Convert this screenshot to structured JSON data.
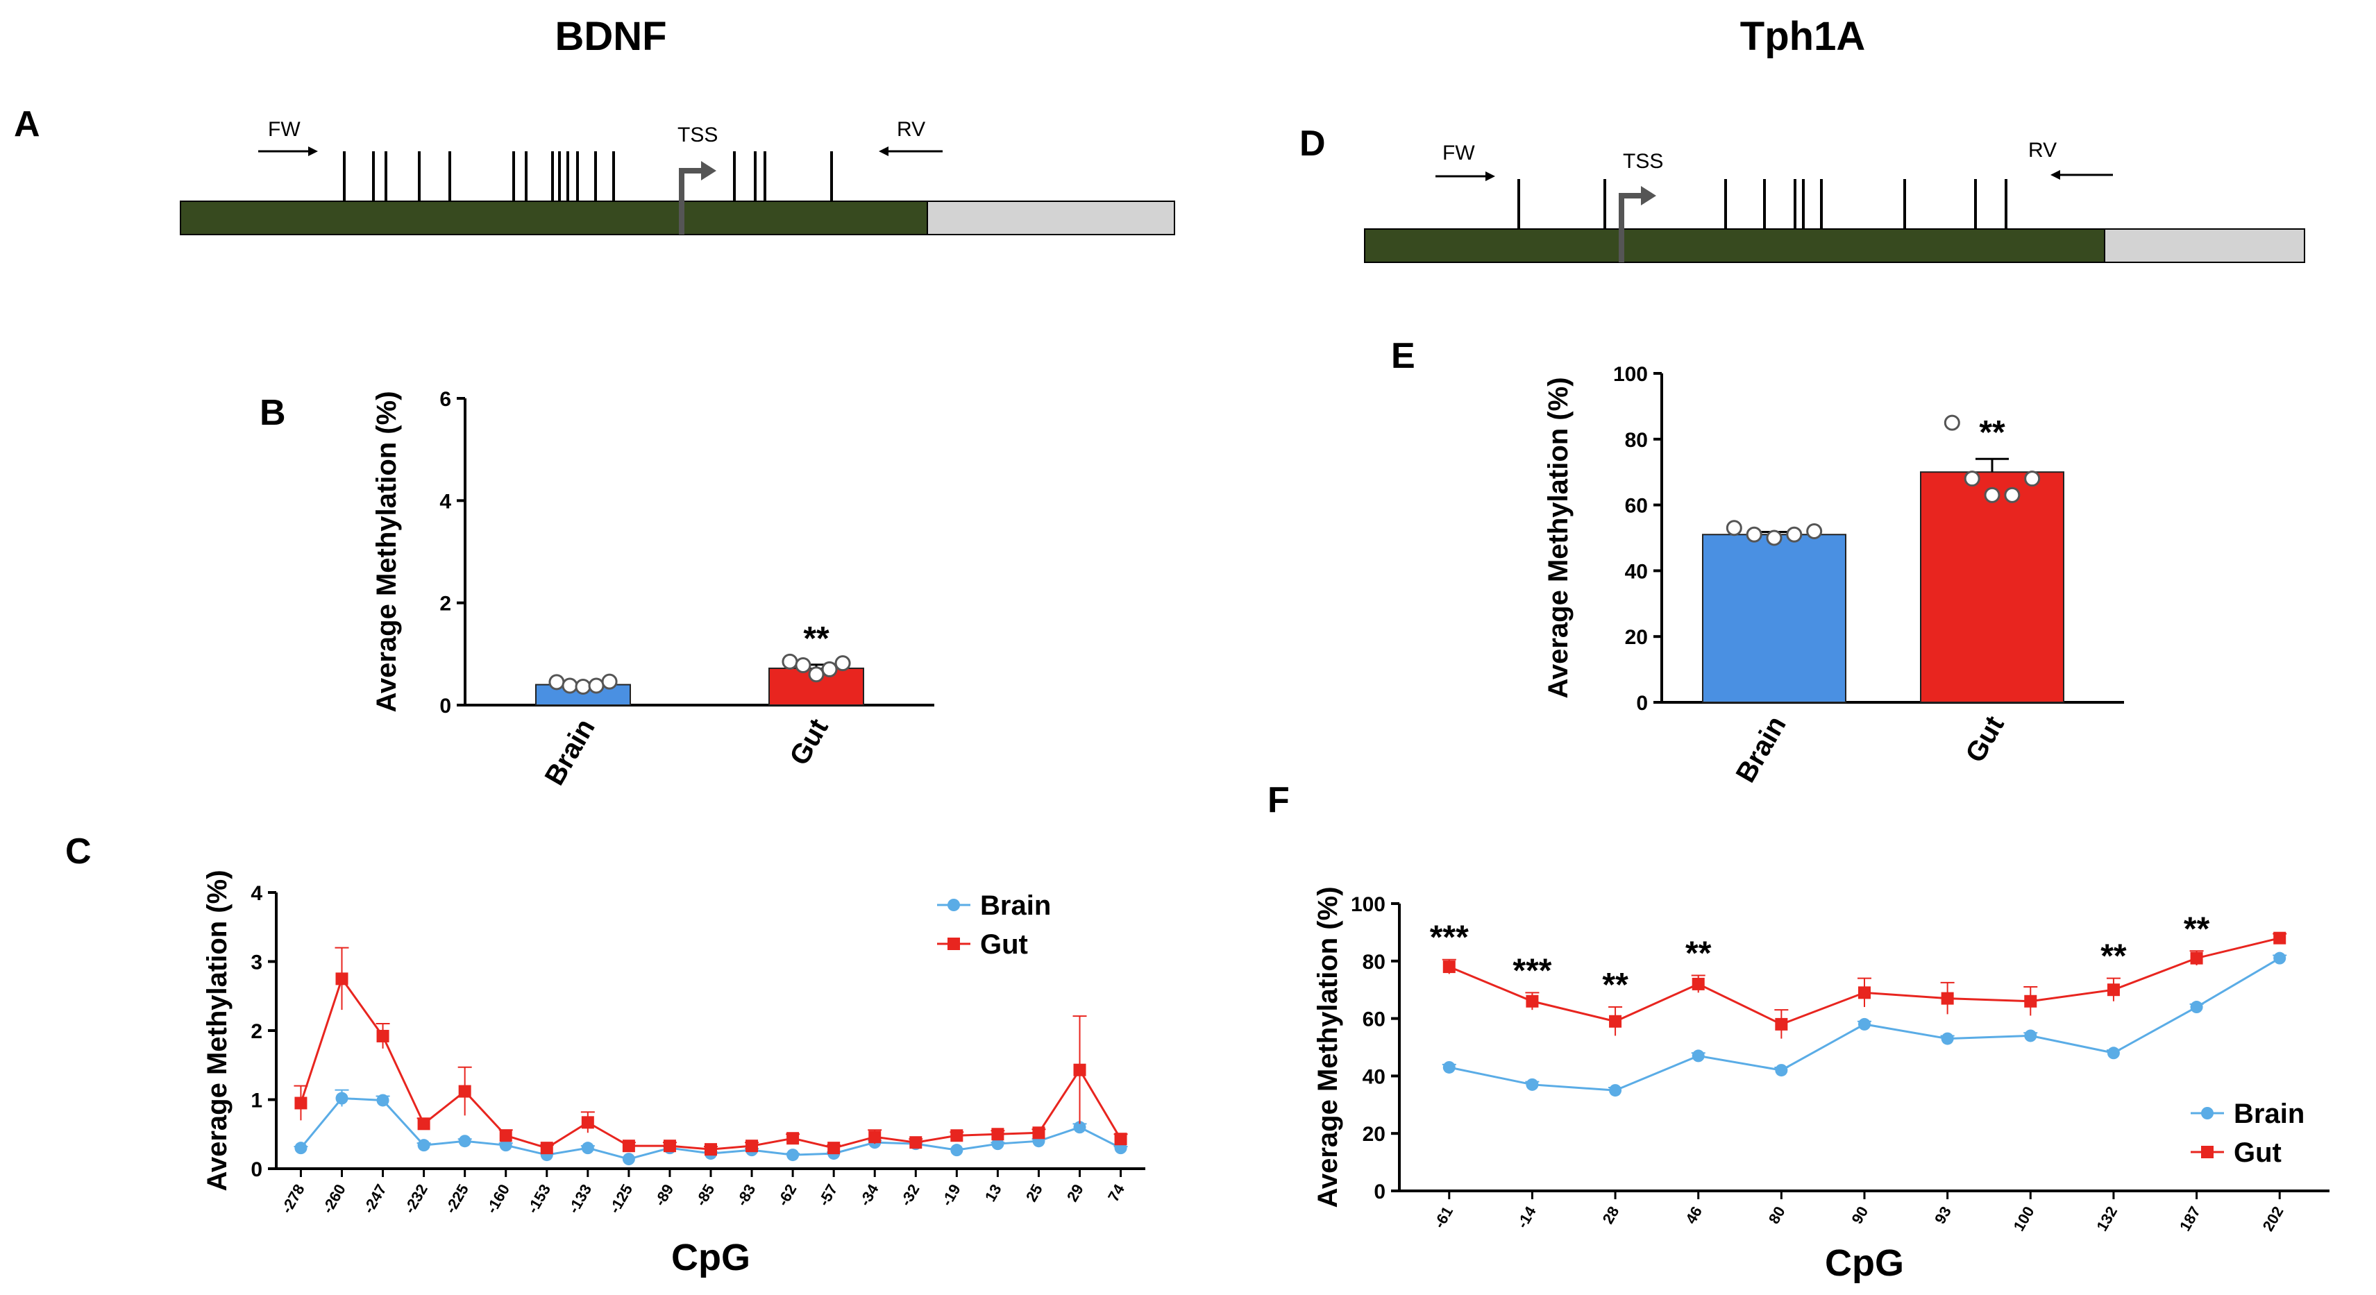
{
  "titles": {
    "left": "BDNF",
    "right": "Tph1A"
  },
  "panels": {
    "a": "A",
    "b": "B",
    "c": "C",
    "d": "D",
    "e": "E",
    "f": "F"
  },
  "gene_maps": {
    "bdnf": {
      "fw": "FW",
      "rv": "RV",
      "tss": "TSS",
      "dark_color": "#374a1f",
      "light_color": "#d3d3d3"
    },
    "tph1a": {
      "fw": "FW",
      "rv": "RV",
      "tss": "TSS",
      "dark_color": "#374a1f",
      "light_color": "#d3d3d3"
    }
  },
  "colors": {
    "brain": "#4a90e2",
    "gut": "#e8251f",
    "brain_line": "#5aace6",
    "gut_line": "#e8251f"
  },
  "chart_data": [
    {
      "id": "B",
      "type": "bar",
      "gene": "BDNF",
      "categories": [
        "Brain",
        "Gut"
      ],
      "values": [
        0.4,
        0.72
      ],
      "errors": [
        0.04,
        0.07
      ],
      "points": [
        [
          0.45,
          0.38,
          0.36,
          0.38,
          0.46
        ],
        [
          0.85,
          0.78,
          0.6,
          0.7,
          0.82
        ]
      ],
      "significance": [
        "",
        "**"
      ],
      "ylabel": "Average Methylation (%)",
      "ylim": [
        0,
        6
      ],
      "yticks": [
        0,
        2,
        4,
        6
      ]
    },
    {
      "id": "E",
      "type": "bar",
      "gene": "Tph1A",
      "categories": [
        "Brain",
        "Gut"
      ],
      "values": [
        51,
        70
      ],
      "errors": [
        0.8,
        4
      ],
      "points": [
        [
          53,
          51,
          50,
          51,
          52
        ],
        [
          85,
          68,
          63,
          63,
          68
        ]
      ],
      "significance": [
        "",
        "**"
      ],
      "ylabel": "Average Methylation (%)",
      "ylim": [
        0,
        100
      ],
      "yticks": [
        0,
        20,
        40,
        60,
        80,
        100
      ]
    },
    {
      "id": "C",
      "type": "line",
      "gene": "BDNF",
      "xlabel": "CpG",
      "ylabel": "Average Methylation (%)",
      "categories": [
        "-278",
        "-260",
        "-247",
        "-232",
        "-225",
        "-160",
        "-153",
        "-133",
        "-125",
        "-89",
        "-85",
        "-83",
        "-62",
        "-57",
        "-34",
        "-32",
        "-19",
        "13",
        "25",
        "29",
        "74"
      ],
      "series": [
        {
          "name": "Brain",
          "values": [
            0.3,
            1.02,
            0.99,
            0.34,
            0.4,
            0.34,
            0.2,
            0.3,
            0.14,
            0.3,
            0.22,
            0.27,
            0.2,
            0.22,
            0.38,
            0.36,
            0.27,
            0.36,
            0.4,
            0.6,
            0.3
          ],
          "errors": [
            0.02,
            0.12,
            0.06,
            0.03,
            0.03,
            0.03,
            0.02,
            0.03,
            0.02,
            0.02,
            0.02,
            0.02,
            0.02,
            0.02,
            0.03,
            0.02,
            0.02,
            0.02,
            0.03,
            0.05,
            0.02
          ]
        },
        {
          "name": "Gut",
          "values": [
            0.95,
            2.75,
            1.92,
            0.65,
            1.12,
            0.48,
            0.3,
            0.67,
            0.33,
            0.33,
            0.28,
            0.33,
            0.44,
            0.3,
            0.46,
            0.38,
            0.48,
            0.5,
            0.52,
            1.43,
            0.43
          ],
          "errors": [
            0.25,
            0.45,
            0.18,
            0.08,
            0.35,
            0.08,
            0.04,
            0.15,
            0.05,
            0.05,
            0.04,
            0.05,
            0.06,
            0.04,
            0.1,
            0.05,
            0.05,
            0.05,
            0.05,
            0.78,
            0.07
          ]
        }
      ],
      "significance": [],
      "ylim": [
        0,
        4
      ],
      "yticks": [
        0,
        1,
        2,
        3,
        4
      ],
      "legend": "top-right"
    },
    {
      "id": "F",
      "type": "line",
      "gene": "Tph1A",
      "xlabel": "CpG",
      "ylabel": "Average Methylation (%)",
      "categories": [
        "-61",
        "-14",
        "28",
        "46",
        "80",
        "90",
        "93",
        "100",
        "132",
        "187",
        "202"
      ],
      "series": [
        {
          "name": "Brain",
          "values": [
            43,
            37,
            35,
            47,
            42,
            58,
            53,
            54,
            48,
            64,
            81
          ],
          "errors": [
            1,
            1,
            1,
            1,
            1,
            1,
            1,
            1,
            1,
            1,
            1
          ]
        },
        {
          "name": "Gut",
          "values": [
            78,
            66,
            59,
            72,
            58,
            69,
            67,
            66,
            70,
            81,
            88
          ],
          "errors": [
            2.5,
            3,
            5,
            3,
            5,
            5,
            5.5,
            5,
            4,
            2.5,
            1.5
          ]
        }
      ],
      "significance": [
        "***",
        "***",
        "**",
        "**",
        "",
        "",
        "",
        "",
        "**",
        "**",
        ""
      ],
      "ylim": [
        0,
        100
      ],
      "yticks": [
        0,
        20,
        40,
        60,
        80,
        100
      ],
      "legend": "bottom-right"
    }
  ]
}
